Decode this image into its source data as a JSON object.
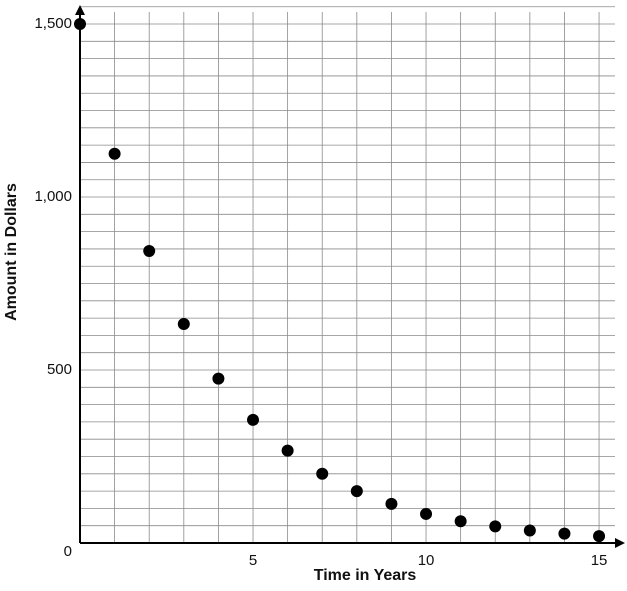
{
  "chart_data": {
    "type": "scatter",
    "x_label": "Time in Years",
    "y_label": "Amount in Dollars",
    "x": [
      0,
      1,
      2,
      3,
      4,
      5,
      6,
      7,
      8,
      9,
      10,
      11,
      12,
      13,
      14,
      15
    ],
    "values": [
      1500,
      1125,
      844,
      633,
      475,
      356,
      267,
      200,
      150,
      113,
      84,
      63,
      48,
      36,
      27,
      20
    ],
    "color": "#000000",
    "xlim": [
      0,
      15.75
    ],
    "ylim": [
      0,
      1555
    ],
    "xticks": [
      5,
      10,
      15
    ],
    "yticks": [
      0,
      500,
      {
        "value": 1000,
        "label": "1,000"
      },
      {
        "value": 1500,
        "label": "1,500"
      }
    ],
    "grid": {
      "x_step": 1,
      "y_step": 50
    }
  }
}
